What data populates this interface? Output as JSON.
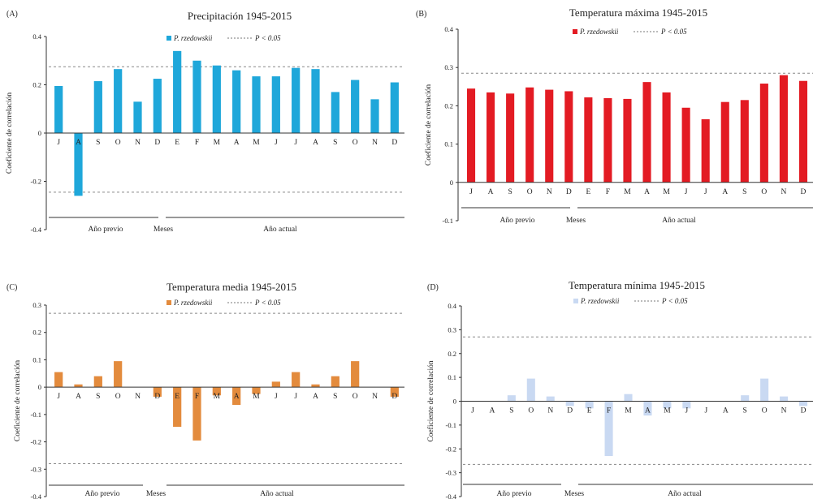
{
  "figure": {
    "panels": [
      {
        "letter": "(A)",
        "chart_data": {
          "type": "bar",
          "title": "Precipitación 1945-2015",
          "ylabel": "Coeficiente de correlación",
          "xlabel": "Meses",
          "categories": [
            "J",
            "A",
            "S",
            "O",
            "N",
            "D",
            "E",
            "F",
            "M",
            "A",
            "M",
            "J",
            "J",
            "A",
            "S",
            "O",
            "N",
            "D"
          ],
          "groups": [
            {
              "label": "Año previo",
              "from": 0,
              "to": 5
            },
            {
              "label": "Año actual",
              "from": 6,
              "to": 17
            }
          ],
          "series": [
            {
              "name": "P. rzedowskii",
              "values": [
                0.195,
                -0.26,
                0.215,
                0.265,
                0.13,
                0.225,
                0.34,
                0.3,
                0.28,
                0.26,
                0.235,
                0.235,
                0.27,
                0.265,
                0.17,
                0.22,
                0.14,
                0.21
              ]
            }
          ],
          "significance": {
            "label": "P < 0.05",
            "upper": 0.275,
            "lower": -0.245
          },
          "ylim": [
            -0.4,
            0.4
          ],
          "yticks": [
            -0.4,
            -0.2,
            0,
            0.2,
            0.4
          ],
          "ytick_labels": [
            "-0.4",
            "-0.2",
            "0",
            "0.2",
            "0.4"
          ],
          "color": "#1fa7da"
        }
      },
      {
        "letter": "(B)",
        "chart_data": {
          "type": "bar",
          "title": "Temperatura máxima 1945-2015",
          "ylabel": "Coeficiente de correlación",
          "xlabel": "Meses",
          "categories": [
            "J",
            "A",
            "S",
            "O",
            "N",
            "D",
            "E",
            "F",
            "M",
            "A",
            "M",
            "J",
            "J",
            "A",
            "S",
            "O",
            "N",
            "D"
          ],
          "groups": [
            {
              "label": "Año previo",
              "from": 0,
              "to": 5
            },
            {
              "label": "Año actual",
              "from": 6,
              "to": 17
            }
          ],
          "series": [
            {
              "name": "P. rzedowskii",
              "values": [
                0.245,
                0.235,
                0.232,
                0.248,
                0.242,
                0.238,
                0.222,
                0.22,
                0.218,
                0.262,
                0.235,
                0.195,
                0.165,
                0.21,
                0.215,
                0.258,
                0.28,
                0.265
              ]
            }
          ],
          "significance": {
            "label": "P < 0.05",
            "upper": 0.285,
            "lower": null
          },
          "ylim": [
            -0.1,
            0.4
          ],
          "yticks": [
            -0.1,
            0,
            0.1,
            0.2,
            0.3,
            0.4
          ],
          "ytick_labels": [
            "-0.1",
            "0",
            "0.1",
            "0.2",
            "0.3",
            "0.4"
          ],
          "color": "#e31b23"
        }
      },
      {
        "letter": "(C)",
        "chart_data": {
          "type": "bar",
          "title": "Temperatura media 1945-2015",
          "ylabel": "Coeficiente de correlación",
          "xlabel": "Meses",
          "categories": [
            "J",
            "A",
            "S",
            "O",
            "N",
            "D",
            "E",
            "F",
            "M",
            "A",
            "M",
            "J",
            "J",
            "A",
            "S",
            "O",
            "N",
            "D"
          ],
          "groups": [
            {
              "label": "Año previo",
              "from": 0,
              "to": 5
            },
            {
              "label": "Año actual",
              "from": 6,
              "to": 17
            }
          ],
          "series": [
            {
              "name": "P. rzedowskii",
              "values": [
                0.055,
                0.01,
                0.04,
                0.095,
                0.0,
                -0.035,
                -0.145,
                -0.195,
                -0.03,
                -0.065,
                -0.025,
                0.02,
                0.055,
                0.01,
                0.04,
                0.095,
                0.0,
                -0.035
              ]
            }
          ],
          "significance": {
            "label": "P < 0.05",
            "upper": 0.27,
            "lower": -0.28
          },
          "ylim": [
            -0.4,
            0.3
          ],
          "yticks": [
            -0.4,
            -0.3,
            -0.2,
            -0.1,
            0,
            0.1,
            0.2,
            0.3
          ],
          "ytick_labels": [
            "-0.4",
            "-0.3",
            "-0.2",
            "-0.1",
            "0",
            "0.1",
            "0.2",
            "0.3"
          ],
          "color": "#e38b3d"
        }
      },
      {
        "letter": "(D)",
        "chart_data": {
          "type": "bar",
          "title": "Temperatura mínima 1945-2015",
          "ylabel": "Coeficiente de correlación",
          "xlabel": "Meses",
          "categories": [
            "J",
            "A",
            "S",
            "O",
            "N",
            "D",
            "E",
            "F",
            "M",
            "A",
            "M",
            "J",
            "J",
            "A",
            "S",
            "O",
            "N",
            "D"
          ],
          "groups": [
            {
              "label": "Año previo",
              "from": 0,
              "to": 5
            },
            {
              "label": "Año actual",
              "from": 6,
              "to": 17
            }
          ],
          "series": [
            {
              "name": "P. rzedowskii",
              "values": [
                0.0,
                0.0,
                0.025,
                0.095,
                0.02,
                -0.02,
                -0.03,
                -0.23,
                0.03,
                -0.06,
                -0.03,
                -0.03,
                0.0,
                0.0,
                0.025,
                0.095,
                0.02,
                -0.02
              ]
            }
          ],
          "significance": {
            "label": "P < 0.05",
            "upper": 0.27,
            "lower": -0.265
          },
          "ylim": [
            -0.4,
            0.4
          ],
          "yticks": [
            -0.4,
            -0.3,
            -0.2,
            -0.1,
            0,
            0.1,
            0.2,
            0.3,
            0.4
          ],
          "ytick_labels": [
            "-0.4",
            "-0.3",
            "-0.2",
            "-0.1",
            "0",
            "0.1",
            "0.2",
            "0.3",
            "0.4"
          ],
          "color": "#c9d9f2"
        }
      }
    ]
  }
}
